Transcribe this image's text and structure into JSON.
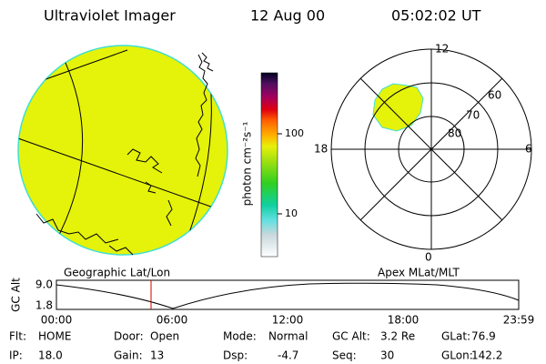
{
  "header": {
    "title": "Ultraviolet Imager",
    "date": "12 Aug 00",
    "time": "05:02:02 UT"
  },
  "colorbar": {
    "label": "photon cm⁻²s⁻¹",
    "ticks": [
      "100",
      "10"
    ]
  },
  "polar": {
    "mlt_labels": [
      "12",
      "18",
      "6",
      "0"
    ],
    "lat_labels": [
      "60",
      "70",
      "80"
    ]
  },
  "map_titles": {
    "left": "Geographic Lat/Lon",
    "right": "Apex MLat/MLT"
  },
  "altitude": {
    "axis_label": "GC Alt",
    "yticks": [
      "9.0",
      "1.8"
    ],
    "xticks": [
      "00:00",
      "06:00",
      "12:00",
      "18:00",
      "23:59"
    ]
  },
  "footer": {
    "rows": [
      [
        {
          "label": "Flt:",
          "value": "HOME"
        },
        {
          "label": "Door:",
          "value": "Open"
        },
        {
          "label": "Mode:",
          "value": "Normal"
        },
        {
          "label": "GC Alt:",
          "value": "3.2 Re"
        },
        {
          "label": "GLat:",
          "value": "76.9"
        }
      ],
      [
        {
          "label": "IP:",
          "value": "18.0"
        },
        {
          "label": "Gain:",
          "value": "13"
        },
        {
          "label": "Dsp:",
          "value": "-4.7"
        },
        {
          "label": "Seq:",
          "value": "30"
        },
        {
          "label": "GLon:",
          "value": "142.2"
        }
      ]
    ]
  }
}
